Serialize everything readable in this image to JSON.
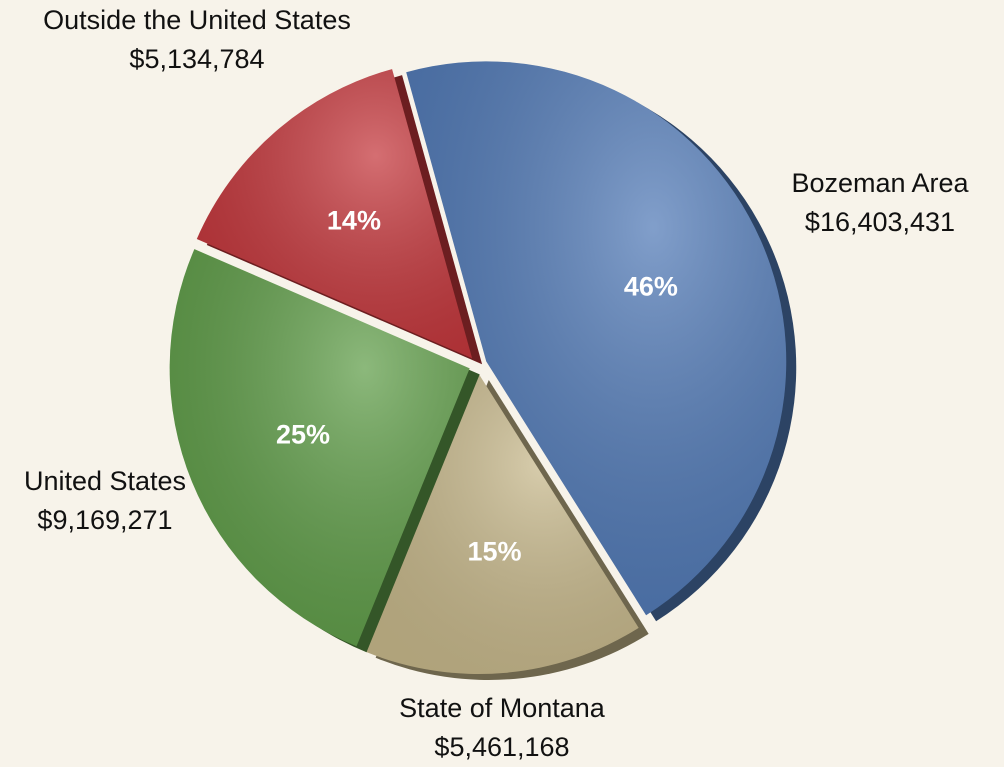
{
  "chart_data": {
    "type": "pie",
    "categories": [
      "Bozeman Area",
      "State of Montana",
      "United States",
      "Outside the United States"
    ],
    "values": [
      16403431,
      5461168,
      9169271,
      5134784
    ],
    "value_labels": [
      "$16,403,431",
      "$5,461,168",
      "$9,169,271",
      "$5,134,784"
    ],
    "percent_labels": [
      "46%",
      "15%",
      "25%",
      "14%"
    ],
    "colors": [
      "#5079b6",
      "#c8b98c",
      "#5f9d48",
      "#c4363b"
    ]
  }
}
